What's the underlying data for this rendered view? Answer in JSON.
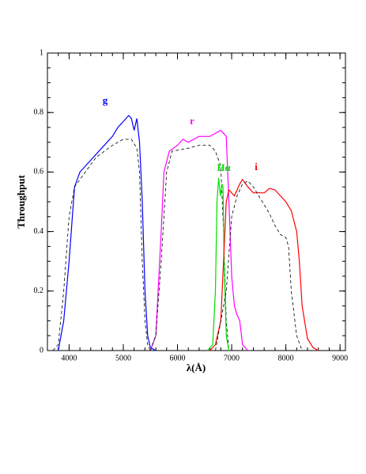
{
  "chart_data": {
    "type": "line",
    "x_label": "λ(Å)",
    "y_label": "Throughput",
    "xlim": [
      3600,
      9100
    ],
    "ylim": [
      0,
      1
    ],
    "xticks": [
      4000,
      5000,
      6000,
      7000,
      8000,
      9000
    ],
    "yticks": [
      0,
      0.2,
      0.4,
      0.6,
      0.8,
      1
    ],
    "series": [
      {
        "name": "g",
        "color": "#0000ff",
        "x": [
          3800,
          3900,
          4000,
          4100,
          4200,
          4300,
          4400,
          4500,
          4600,
          4700,
          4800,
          4900,
          5000,
          5100,
          5150,
          5200,
          5250,
          5300,
          5350,
          5400,
          5450,
          5500,
          5600
        ],
        "values": [
          0,
          0.1,
          0.3,
          0.55,
          0.6,
          0.62,
          0.64,
          0.66,
          0.68,
          0.7,
          0.72,
          0.75,
          0.77,
          0.79,
          0.78,
          0.74,
          0.78,
          0.7,
          0.5,
          0.2,
          0.05,
          0.01,
          0
        ]
      },
      {
        "color": "#000000",
        "dashed": true,
        "x": [
          3700,
          3800,
          3900,
          4000,
          4100,
          4300,
          4500,
          4800,
          5000,
          5150,
          5250,
          5300,
          5350,
          5400,
          5450,
          5500
        ],
        "values": [
          0,
          0.02,
          0.2,
          0.45,
          0.55,
          0.6,
          0.65,
          0.69,
          0.71,
          0.71,
          0.68,
          0.6,
          0.3,
          0.1,
          0.02,
          0
        ]
      },
      {
        "name": "r",
        "color": "#ff00ff",
        "x": [
          5500,
          5600,
          5700,
          5750,
          5850,
          6000,
          6100,
          6200,
          6400,
          6600,
          6700,
          6800,
          6900,
          6950,
          7000,
          7050,
          7100,
          7150,
          7200,
          7300
        ],
        "values": [
          0,
          0.05,
          0.4,
          0.6,
          0.67,
          0.69,
          0.71,
          0.7,
          0.72,
          0.72,
          0.73,
          0.74,
          0.72,
          0.5,
          0.25,
          0.15,
          0.12,
          0.1,
          0.02,
          0
        ]
      },
      {
        "color": "#000000",
        "dashed": true,
        "x": [
          5500,
          5600,
          5700,
          5800,
          5900,
          6200,
          6400,
          6600,
          6700,
          6800,
          6850,
          6900,
          6950
        ],
        "values": [
          0,
          0.05,
          0.3,
          0.6,
          0.67,
          0.68,
          0.69,
          0.69,
          0.67,
          0.62,
          0.4,
          0.1,
          0
        ]
      },
      {
        "name": "Hα",
        "color": "#00dd00",
        "x": [
          6550,
          6650,
          6700,
          6730,
          6760,
          6790,
          6820,
          6840,
          6860,
          6900,
          6950
        ],
        "values": [
          0,
          0.02,
          0.2,
          0.5,
          0.58,
          0.52,
          0.56,
          0.55,
          0.3,
          0.05,
          0
        ]
      },
      {
        "name": "i",
        "color": "#ff0000",
        "x": [
          6600,
          6700,
          6800,
          6850,
          6900,
          6950,
          7050,
          7150,
          7200,
          7300,
          7400,
          7500,
          7600,
          7700,
          7800,
          7900,
          8000,
          8100,
          8200,
          8250,
          8300,
          8400,
          8500,
          8600
        ],
        "values": [
          0,
          0.02,
          0.1,
          0.3,
          0.5,
          0.54,
          0.52,
          0.56,
          0.575,
          0.55,
          0.53,
          0.53,
          0.53,
          0.545,
          0.54,
          0.52,
          0.5,
          0.47,
          0.4,
          0.3,
          0.15,
          0.04,
          0.01,
          0
        ]
      },
      {
        "color": "#000000",
        "dashed": true,
        "x": [
          6700,
          6900,
          7000,
          7100,
          7200,
          7300,
          7400,
          7500,
          7700,
          7800,
          7900,
          8000,
          8050,
          8100,
          8200,
          8300
        ],
        "values": [
          0,
          0.2,
          0.45,
          0.52,
          0.56,
          0.57,
          0.55,
          0.52,
          0.46,
          0.42,
          0.39,
          0.38,
          0.35,
          0.2,
          0.05,
          0
        ]
      }
    ]
  }
}
